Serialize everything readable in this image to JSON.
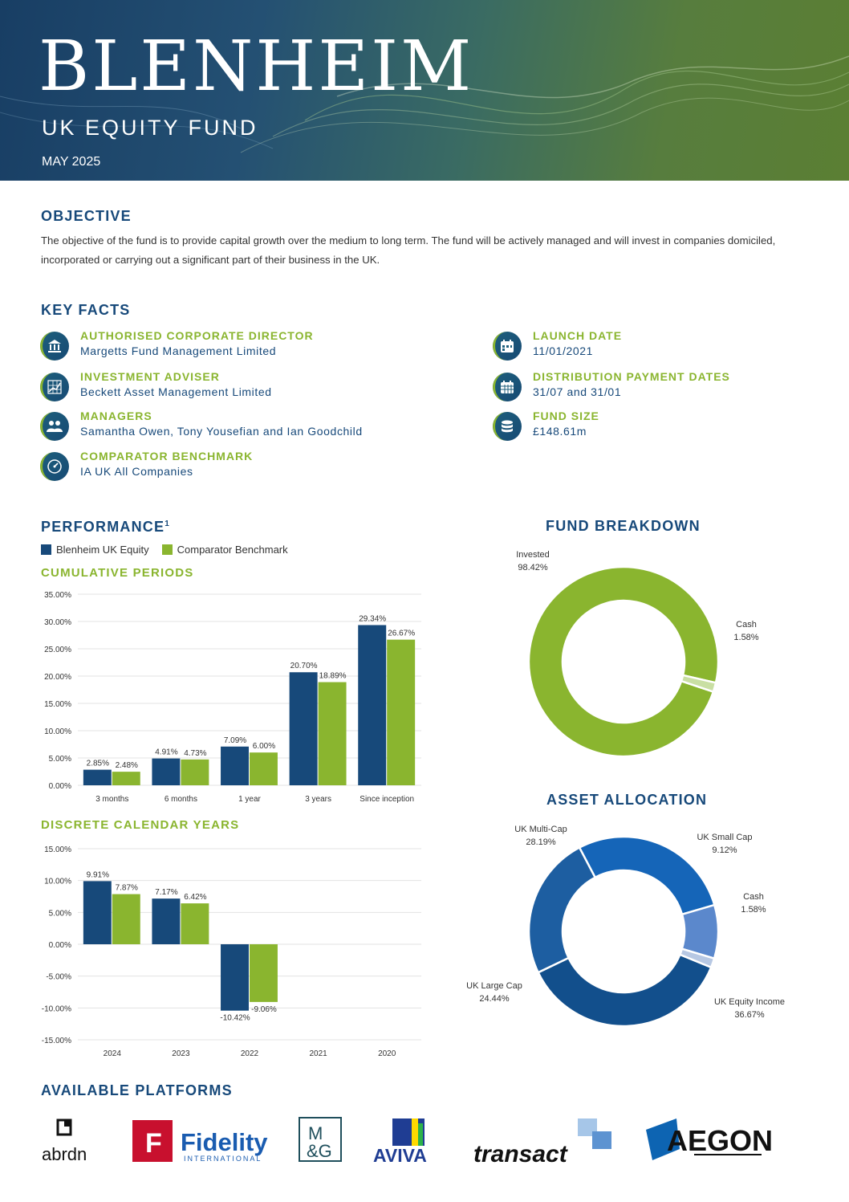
{
  "header": {
    "title": "BLENHEIM",
    "subtitle": "UK EQUITY FUND",
    "date": "MAY 2025"
  },
  "objective": {
    "heading": "OBJECTIVE",
    "text": "The objective of the fund is to provide capital growth over the medium to long term. The fund will be actively managed and will invest in companies domiciled, incorporated or carrying out a significant part of their business in the UK."
  },
  "key_facts": {
    "heading": "KEY FACTS",
    "items": [
      {
        "label": "AUTHORISED CORPORATE DIRECTOR",
        "value": "Margetts Fund Management Limited",
        "icon": "bank-icon"
      },
      {
        "label": "INVESTMENT ADVISER",
        "value": "Beckett Asset Management Limited",
        "icon": "chart-grid-icon"
      },
      {
        "label": "MANAGERS",
        "value": "Samantha Owen, Tony Yousefian and Ian Goodchild",
        "icon": "people-icon"
      },
      {
        "label": "COMPARATOR BENCHMARK",
        "value": "IA UK All Companies",
        "icon": "gauge-icon"
      },
      {
        "label": "LAUNCH DATE",
        "value": "11/01/2021",
        "icon": "calendar-icon"
      },
      {
        "label": "DISTRIBUTION PAYMENT DATES",
        "value": "31/07 and 31/01",
        "icon": "calendar-grid-icon"
      },
      {
        "label": "FUND SIZE",
        "value": "£148.61m",
        "icon": "coins-icon"
      }
    ]
  },
  "performance": {
    "heading": "PERFORMANCE",
    "footnote": "1",
    "legend": [
      "Blenheim UK Equity",
      "Comparator Benchmark"
    ],
    "cumulative_heading": "CUMULATIVE PERIODS",
    "discrete_heading": "DISCRETE CALENDAR YEARS"
  },
  "fund_breakdown": {
    "heading": "FUND BREAKDOWN"
  },
  "asset_allocation": {
    "heading": "ASSET ALLOCATION"
  },
  "platforms": {
    "heading": "AVAILABLE PLATFORMS",
    "names": [
      "abrdn",
      "Fidelity",
      "INTERNATIONAL",
      "M",
      "&G",
      "AVIVA",
      "transact",
      "AEGON"
    ]
  },
  "colors": {
    "fund": "#17497a",
    "benchmark": "#8ab52f",
    "heading": "#17497a",
    "accent": "#8ab52f"
  },
  "chart_data": [
    {
      "type": "bar",
      "title": "CUMULATIVE PERIODS",
      "categories": [
        "3 months",
        "6 months",
        "1 year",
        "3 years",
        "Since inception"
      ],
      "series": [
        {
          "name": "Blenheim UK Equity",
          "values": [
            2.85,
            4.91,
            7.09,
            20.7,
            29.34
          ],
          "labels": [
            "2.85%",
            "4.91%",
            "7.09%",
            "20.70%",
            "29.34%"
          ],
          "color": "#17497a"
        },
        {
          "name": "Comparator Benchmark",
          "values": [
            2.48,
            4.73,
            6.0,
            18.89,
            26.67
          ],
          "labels": [
            "2.48%",
            "4.73%",
            "6.00%",
            "18.89%",
            "26.67%"
          ],
          "color": "#8ab52f"
        }
      ],
      "ylim": [
        0,
        35
      ],
      "yticks": [
        "0.00%",
        "5.00%",
        "10.00%",
        "15.00%",
        "20.00%",
        "25.00%",
        "30.00%",
        "35.00%"
      ],
      "grid": true
    },
    {
      "type": "bar",
      "title": "DISCRETE CALENDAR YEARS",
      "categories": [
        "2024",
        "2023",
        "2022",
        "2021",
        "2020"
      ],
      "series": [
        {
          "name": "Blenheim UK Equity",
          "values": [
            9.91,
            7.17,
            -10.42,
            null,
            null
          ],
          "labels": [
            "9.91%",
            "7.17%",
            "-10.42%",
            "",
            ""
          ],
          "color": "#17497a"
        },
        {
          "name": "Comparator Benchmark",
          "values": [
            7.87,
            6.42,
            -9.06,
            null,
            null
          ],
          "labels": [
            "7.87%",
            "6.42%",
            "-9.06%",
            "",
            ""
          ],
          "color": "#8ab52f"
        }
      ],
      "ylim": [
        -15,
        15
      ],
      "yticks": [
        "-15.00%",
        "-10.00%",
        "-5.00%",
        "0.00%",
        "5.00%",
        "10.00%",
        "15.00%"
      ],
      "grid": true
    },
    {
      "type": "pie",
      "title": "FUND BREAKDOWN",
      "slices": [
        {
          "name": "Invested",
          "value": 98.42,
          "label": "98.42%",
          "color": "#8ab52f"
        },
        {
          "name": "Cash",
          "value": 1.58,
          "label": "1.58%",
          "color": "#c9dfa3"
        }
      ]
    },
    {
      "type": "pie",
      "title": "ASSET ALLOCATION",
      "slices": [
        {
          "name": "UK Equity Income",
          "value": 36.67,
          "label": "36.67%",
          "color": "#124f8c"
        },
        {
          "name": "UK Large Cap",
          "value": 24.44,
          "label": "24.44%",
          "color": "#1d5ea1"
        },
        {
          "name": "UK Multi-Cap",
          "value": 28.19,
          "label": "28.19%",
          "color": "#1565b8"
        },
        {
          "name": "UK Small Cap",
          "value": 9.12,
          "label": "9.12%",
          "color": "#5b88cc"
        },
        {
          "name": "Cash",
          "value": 1.58,
          "label": "1.58%",
          "color": "#b7c8e3"
        }
      ]
    }
  ]
}
